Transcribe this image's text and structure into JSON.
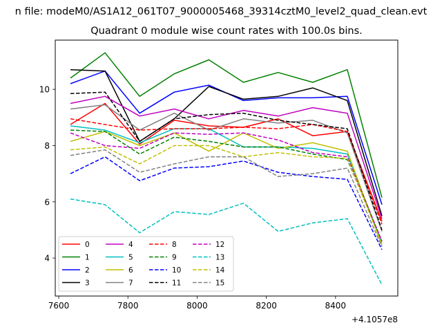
{
  "chart_data": {
    "type": "line",
    "suptitle": "n file: modeM0/AS1A12_061T07_9000005468_39314cztM0_level2_quad_clean.evt",
    "title": "Quadrant 0 module wise count rates with 100.0s bins.",
    "xlabel": "",
    "ylabel": "",
    "x_offset_label": "+4.1057e8",
    "x": [
      7634,
      7734,
      7834,
      7934,
      8034,
      8134,
      8234,
      8334,
      8434,
      8534
    ],
    "xlim": [
      7590,
      8580
    ],
    "ylim": [
      2.65,
      11.75
    ],
    "xticks": [
      7600,
      7800,
      8000,
      8200,
      8400
    ],
    "yticks": [
      4,
      6,
      8,
      10
    ],
    "grid": false,
    "legend_position": "lower-left",
    "legend_columns": 4,
    "series": [
      {
        "name": "0",
        "color": "#ff0000",
        "dash": "solid",
        "values": [
          8.75,
          9.5,
          8.05,
          8.9,
          8.7,
          8.65,
          8.95,
          8.35,
          8.5,
          5.3
        ]
      },
      {
        "name": "1",
        "color": "#008000",
        "dash": "solid",
        "values": [
          10.4,
          11.3,
          9.75,
          10.55,
          11.05,
          10.25,
          10.6,
          10.25,
          10.7,
          6.15
        ]
      },
      {
        "name": "2",
        "color": "#0000ff",
        "dash": "solid",
        "values": [
          10.2,
          10.65,
          9.15,
          9.9,
          10.15,
          9.6,
          9.7,
          9.7,
          9.75,
          5.9
        ]
      },
      {
        "name": "3",
        "color": "#000000",
        "dash": "solid",
        "values": [
          10.7,
          10.65,
          8.15,
          8.95,
          10.1,
          9.65,
          9.75,
          10.05,
          9.6,
          5.5
        ]
      },
      {
        "name": "4",
        "color": "#bf00bf",
        "dash": "solid",
        "values": [
          9.5,
          9.75,
          9.05,
          9.3,
          8.95,
          9.25,
          9.05,
          9.35,
          9.15,
          5.4
        ]
      },
      {
        "name": "5",
        "color": "#00bfbf",
        "dash": "solid",
        "values": [
          8.7,
          8.55,
          8.1,
          8.6,
          8.6,
          7.95,
          7.95,
          7.9,
          7.7,
          4.55
        ]
      },
      {
        "name": "6",
        "color": "#bfbf00",
        "dash": "solid",
        "values": [
          8.15,
          8.5,
          8.0,
          8.45,
          7.8,
          8.45,
          7.9,
          8.1,
          7.8,
          4.45
        ]
      },
      {
        "name": "7",
        "color": "#808080",
        "dash": "solid",
        "values": [
          9.3,
          9.45,
          8.55,
          9.15,
          8.55,
          8.95,
          8.8,
          8.9,
          8.45,
          4.95
        ]
      },
      {
        "name": "8",
        "color": "#ff0000",
        "dash": "dashed",
        "values": [
          8.95,
          8.75,
          8.55,
          8.6,
          8.6,
          8.65,
          8.6,
          8.75,
          8.5,
          5.2
        ]
      },
      {
        "name": "9",
        "color": "#008000",
        "dash": "dashed",
        "values": [
          8.55,
          8.5,
          7.7,
          8.3,
          8.15,
          7.95,
          7.95,
          7.7,
          7.5,
          4.6
        ]
      },
      {
        "name": "10",
        "color": "#0000ff",
        "dash": "dashed",
        "values": [
          7.0,
          7.6,
          6.75,
          7.2,
          7.25,
          7.45,
          7.05,
          6.9,
          6.8,
          4.3
        ]
      },
      {
        "name": "11",
        "color": "#000000",
        "dash": "dashed",
        "values": [
          9.85,
          9.9,
          8.15,
          8.95,
          9.1,
          9.15,
          8.9,
          8.75,
          8.6,
          5.0
        ]
      },
      {
        "name": "12",
        "color": "#bf00bf",
        "dash": "dashed",
        "values": [
          8.45,
          8.0,
          7.9,
          8.45,
          8.4,
          8.45,
          8.2,
          7.75,
          7.6,
          4.6
        ]
      },
      {
        "name": "13",
        "color": "#00bfbf",
        "dash": "dashed",
        "values": [
          6.1,
          5.9,
          4.9,
          5.65,
          5.55,
          5.95,
          4.95,
          5.25,
          5.4,
          3.05
        ]
      },
      {
        "name": "14",
        "color": "#bfbf00",
        "dash": "dashed",
        "values": [
          7.85,
          7.95,
          7.35,
          8.0,
          8.0,
          7.6,
          7.75,
          7.6,
          7.55,
          4.5
        ]
      },
      {
        "name": "15",
        "color": "#808080",
        "dash": "dashed",
        "values": [
          7.65,
          7.85,
          7.05,
          7.35,
          7.6,
          7.6,
          6.9,
          7.0,
          7.2,
          4.4
        ]
      }
    ]
  }
}
